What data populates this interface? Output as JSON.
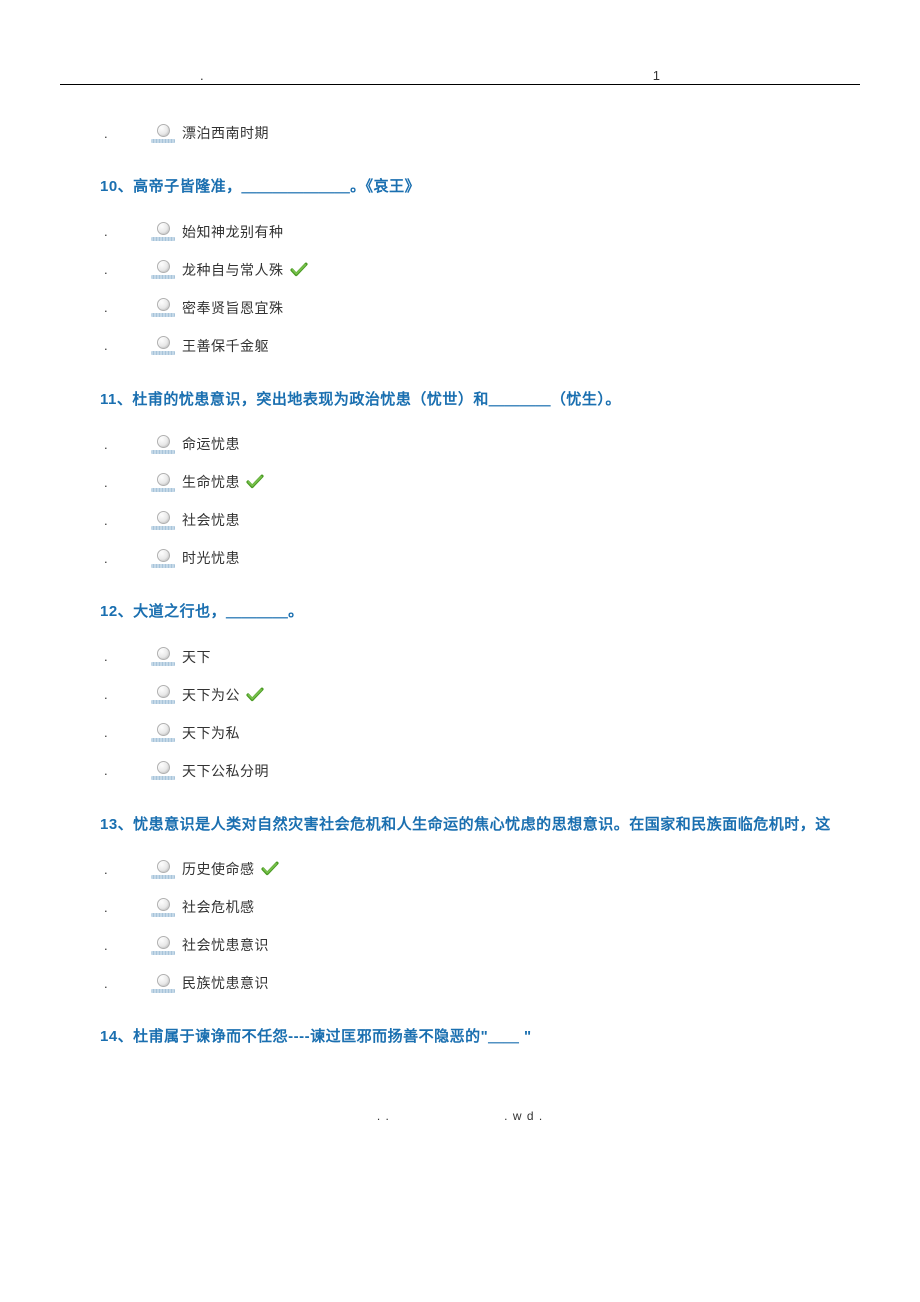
{
  "page": {
    "header_dot": ".",
    "header_num": "1",
    "footer_left": ". .",
    "footer_right": ".   w d ."
  },
  "colors": {
    "question_color": "#1a6fb0",
    "text_color": "#333333",
    "check_fill": "#77c04b",
    "check_stroke": "#4a9b23",
    "background": "#ffffff"
  },
  "orphan_option": {
    "text": "漂泊西南时期",
    "correct": false
  },
  "questions": [
    {
      "title": "10、高帝子皆隆准，＿＿＿＿＿＿＿。《哀王》",
      "options": [
        {
          "text": "始知神龙别有种",
          "correct": false
        },
        {
          "text": "龙种自与常人殊",
          "correct": true
        },
        {
          "text": "密奉贤旨恩宜殊",
          "correct": false
        },
        {
          "text": "王善保千金躯",
          "correct": false
        }
      ]
    },
    {
      "title": "11、杜甫的忧患意识，突出地表现为政治忧患（忧世）和＿＿＿＿（忧生）。",
      "options": [
        {
          "text": "命运忧患",
          "correct": false
        },
        {
          "text": "生命忧患",
          "correct": true
        },
        {
          "text": "社会忧患",
          "correct": false
        },
        {
          "text": "时光忧患",
          "correct": false
        }
      ]
    },
    {
      "title": "12、大道之行也，＿＿＿＿。",
      "options": [
        {
          "text": "天下",
          "correct": false
        },
        {
          "text": "天下为公",
          "correct": true
        },
        {
          "text": "天下为私",
          "correct": false
        },
        {
          "text": "天下公私分明",
          "correct": false
        }
      ]
    },
    {
      "title": "13、忧患意识是人类对自然灾害社会危机和人生命运的焦心忧虑的思想意识。在国家和民族面临危机时，这",
      "options": [
        {
          "text": "历史使命感",
          "correct": true
        },
        {
          "text": "社会危机感",
          "correct": false
        },
        {
          "text": "社会忧患意识",
          "correct": false
        },
        {
          "text": "民族忧患意识",
          "correct": false
        }
      ]
    },
    {
      "title": "14、杜甫属于谏诤而不任怨----谏过匡邪而扬善不隐恶的\"＿＿  \"",
      "options": []
    }
  ]
}
